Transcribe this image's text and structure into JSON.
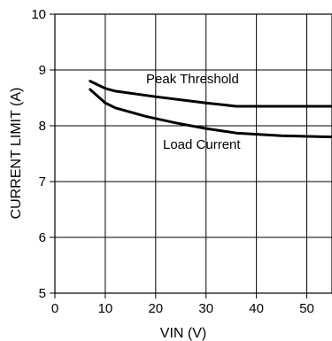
{
  "chart_data": {
    "type": "line",
    "xlabel": "VIN (V)",
    "ylabel": "CURRENT LIMIT (A)",
    "xlim": [
      0,
      55
    ],
    "ylim": [
      5,
      10
    ],
    "xticks": [
      "0",
      "10",
      "20",
      "30",
      "40",
      "50"
    ],
    "yticks": [
      "5",
      "6",
      "7",
      "8",
      "9",
      "10"
    ],
    "grid": true,
    "series": [
      {
        "name": "Peak Threshold",
        "x": [
          7,
          10,
          12,
          20,
          30,
          36,
          45,
          55
        ],
        "y": [
          8.8,
          8.67,
          8.62,
          8.52,
          8.41,
          8.35,
          8.35,
          8.35
        ]
      },
      {
        "name": "Load Current",
        "x": [
          7,
          10,
          12,
          18,
          24,
          30,
          36,
          45,
          55
        ],
        "y": [
          8.65,
          8.41,
          8.32,
          8.17,
          8.05,
          7.95,
          7.87,
          7.82,
          7.8
        ]
      }
    ]
  }
}
